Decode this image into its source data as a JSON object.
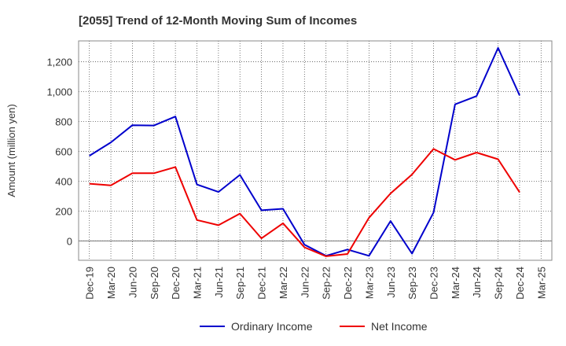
{
  "chart_data": {
    "type": "line",
    "title": "[2055]  Trend of 12-Month Moving Sum of Incomes",
    "xlabel": "",
    "ylabel": "Amount (million yen)",
    "categories": [
      "Dec-19",
      "Mar-20",
      "Jun-20",
      "Sep-20",
      "Dec-20",
      "Mar-21",
      "Jun-21",
      "Sep-21",
      "Dec-21",
      "Mar-22",
      "Jun-22",
      "Sep-22",
      "Dec-22",
      "Mar-23",
      "Jun-23",
      "Sep-23",
      "Dec-23",
      "Mar-24",
      "Jun-24",
      "Sep-24",
      "Dec-24",
      "Mar-25"
    ],
    "ylim": [
      -130,
      1340
    ],
    "yticks": [
      0,
      200,
      400,
      600,
      800,
      1000,
      1200
    ],
    "ytick_labels": [
      "0",
      "200",
      "400",
      "600",
      "800",
      "1,000",
      "1,200"
    ],
    "grid": true,
    "legend_position": "bottom-center",
    "series": [
      {
        "name": "Ordinary Income",
        "color": "#0000cc",
        "values": [
          570,
          660,
          775,
          773,
          833,
          378,
          328,
          442,
          205,
          215,
          -25,
          -100,
          -58,
          -100,
          133,
          -85,
          190,
          915,
          970,
          1293,
          975,
          null
        ]
      },
      {
        "name": "Net Income",
        "color": "#ee0000",
        "values": [
          383,
          372,
          453,
          453,
          495,
          140,
          105,
          183,
          17,
          118,
          -43,
          -103,
          -88,
          155,
          318,
          445,
          616,
          543,
          592,
          547,
          325,
          null
        ]
      }
    ]
  }
}
